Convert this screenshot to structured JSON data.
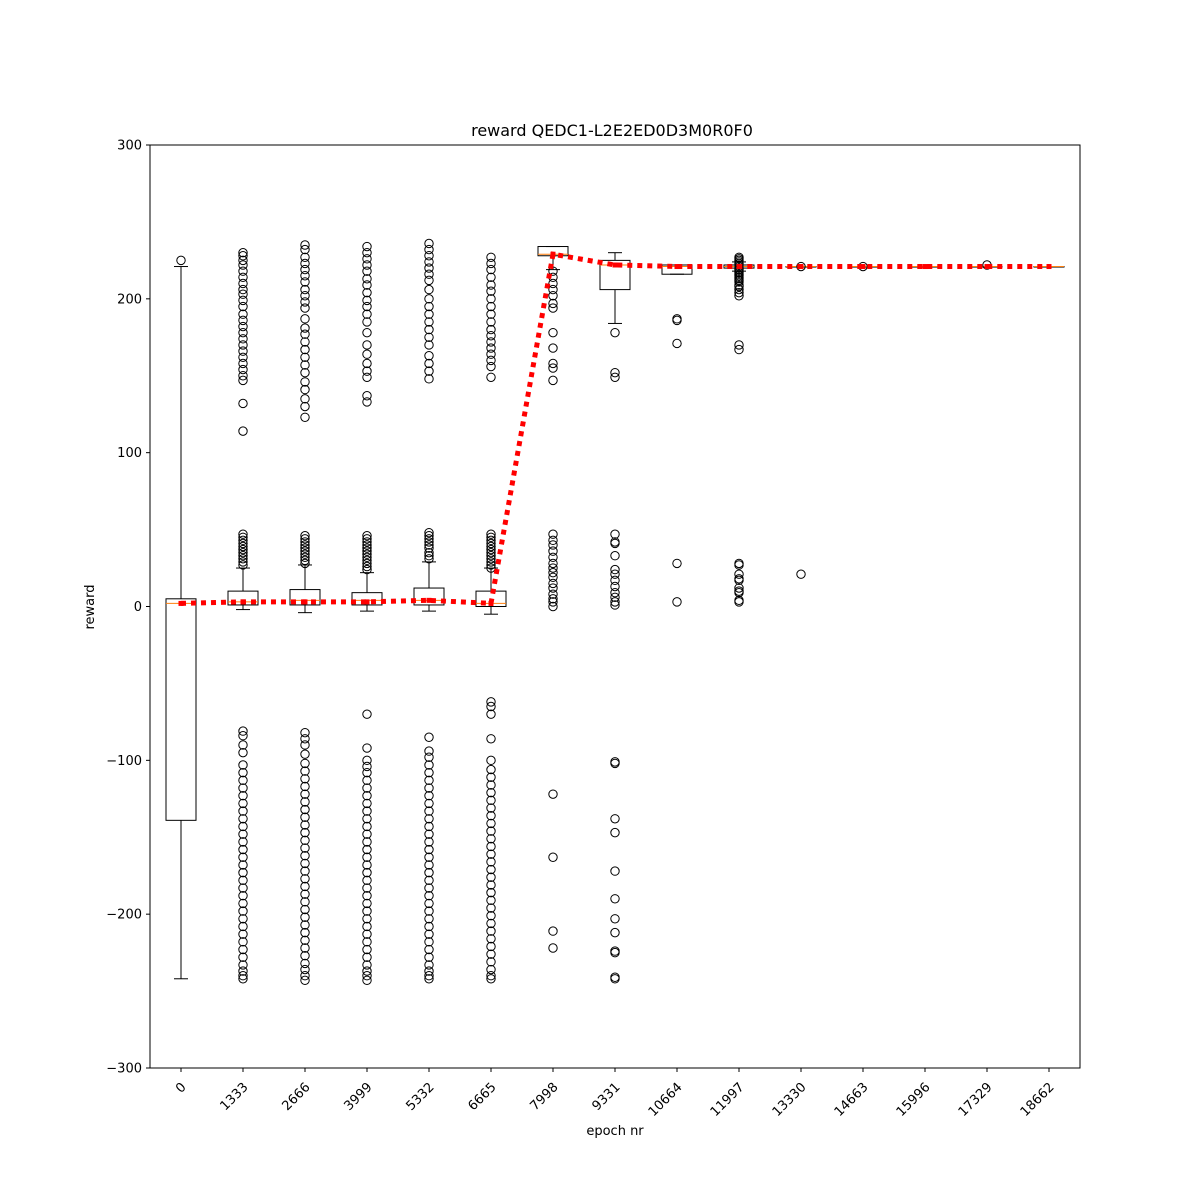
{
  "chart_data": {
    "type": "box",
    "title": "reward QEDC1-L2E2ED0D3M0R0F0",
    "xlabel": "epoch nr",
    "ylabel": "reward",
    "ylim": [
      -300,
      300
    ],
    "yticks": [
      -300,
      -200,
      -100,
      0,
      100,
      200,
      300
    ],
    "ytick_labels": [
      "−300",
      "−200",
      "−100",
      "0",
      "100",
      "200",
      "300"
    ],
    "categories": [
      "0",
      "1333",
      "2666",
      "3999",
      "5332",
      "6665",
      "7998",
      "9331",
      "10664",
      "11997",
      "13330",
      "14663",
      "15996",
      "17329",
      "18662"
    ],
    "grid": false,
    "colors": {
      "box": "#000000",
      "median": "#ff7f0e",
      "mean_line": "#ff0000"
    },
    "boxes": [
      {
        "q1": -139,
        "median": 2,
        "q3": 5,
        "whisker_low": -242,
        "whisker_high": 221,
        "outliers": [
          225
        ]
      },
      {
        "q1": 1,
        "median": 3,
        "q3": 10,
        "whisker_low": -2,
        "whisker_high": 25,
        "outliers": [
          230,
          228,
          225,
          222,
          218,
          214,
          210,
          206,
          203,
          199,
          195,
          190,
          186,
          182,
          178,
          174,
          170,
          166,
          162,
          158,
          154,
          150,
          147,
          132,
          114,
          47,
          45,
          43,
          41,
          39,
          37,
          35,
          33,
          31,
          29,
          27,
          -81,
          -84,
          -90,
          -95,
          -103,
          -108,
          -113,
          -118,
          -123,
          -128,
          -133,
          -138,
          -143,
          -148,
          -153,
          -158,
          -163,
          -168,
          -173,
          -178,
          -183,
          -188,
          -193,
          -198,
          -203,
          -208,
          -213,
          -218,
          -223,
          -228,
          -233,
          -237,
          -240,
          -242
        ]
      },
      {
        "q1": 1,
        "median": 4,
        "q3": 11,
        "whisker_low": -4,
        "whisker_high": 27,
        "outliers": [
          235,
          232,
          227,
          223,
          219,
          215,
          211,
          206,
          202,
          198,
          194,
          187,
          181,
          177,
          172,
          167,
          162,
          157,
          152,
          146,
          141,
          135,
          130,
          123,
          46,
          44,
          42,
          40,
          38,
          36,
          34,
          32,
          30,
          28,
          -82,
          -86,
          -90,
          -96,
          -102,
          -107,
          -112,
          -117,
          -122,
          -127,
          -132,
          -137,
          -142,
          -147,
          -152,
          -157,
          -162,
          -167,
          -172,
          -177,
          -182,
          -187,
          -192,
          -197,
          -202,
          -207,
          -212,
          -217,
          -222,
          -227,
          -232,
          -236,
          -240,
          -243
        ]
      },
      {
        "q1": 1,
        "median": 4,
        "q3": 9,
        "whisker_low": -3,
        "whisker_high": 22,
        "outliers": [
          234,
          230,
          226,
          222,
          218,
          213,
          209,
          204,
          199,
          195,
          190,
          185,
          178,
          170,
          164,
          158,
          153,
          149,
          137,
          133,
          46,
          44,
          42,
          40,
          38,
          36,
          34,
          32,
          30,
          28,
          26,
          24,
          -70,
          -92,
          -100,
          -104,
          -108,
          -113,
          -118,
          -123,
          -128,
          -133,
          -138,
          -143,
          -148,
          -153,
          -158,
          -163,
          -168,
          -173,
          -178,
          -183,
          -188,
          -193,
          -198,
          -203,
          -208,
          -213,
          -218,
          -223,
          -228,
          -233,
          -237,
          -240,
          -243
        ]
      },
      {
        "q1": 1,
        "median": 4,
        "q3": 12,
        "whisker_low": -3,
        "whisker_high": 29,
        "outliers": [
          236,
          232,
          228,
          224,
          220,
          216,
          212,
          206,
          200,
          195,
          190,
          185,
          180,
          175,
          170,
          163,
          158,
          153,
          148,
          48,
          46,
          44,
          42,
          40,
          38,
          35,
          33,
          31,
          -85,
          -94,
          -98,
          -103,
          -108,
          -113,
          -118,
          -123,
          -128,
          -133,
          -138,
          -143,
          -148,
          -153,
          -158,
          -163,
          -168,
          -173,
          -178,
          -183,
          -188,
          -193,
          -198,
          -203,
          -208,
          -213,
          -218,
          -223,
          -228,
          -233,
          -237,
          -240,
          -242
        ]
      },
      {
        "q1": 0,
        "median": 2,
        "q3": 10,
        "whisker_low": -5,
        "whisker_high": 25,
        "outliers": [
          227,
          223,
          219,
          214,
          209,
          205,
          200,
          195,
          190,
          185,
          180,
          176,
          172,
          168,
          164,
          160,
          156,
          149,
          47,
          45,
          43,
          41,
          39,
          37,
          35,
          33,
          31,
          29,
          27,
          25,
          -62,
          -65,
          -70,
          -86,
          -100,
          -106,
          -111,
          -116,
          -121,
          -126,
          -131,
          -136,
          -141,
          -146,
          -151,
          -156,
          -161,
          -166,
          -171,
          -176,
          -181,
          -186,
          -191,
          -196,
          -201,
          -206,
          -211,
          -216,
          -221,
          -226,
          -231,
          -236,
          -240,
          -242
        ]
      },
      {
        "q1": 228,
        "median": 229,
        "q3": 234,
        "whisker_low": 219,
        "whisker_high": 234,
        "outliers": [
          218,
          214,
          210,
          206,
          202,
          197,
          194,
          178,
          168,
          158,
          155,
          147,
          47,
          43,
          40,
          36,
          32,
          28,
          25,
          22,
          19,
          15,
          12,
          8,
          5,
          3,
          0,
          -122,
          -163,
          -211,
          -222
        ]
      },
      {
        "q1": 206,
        "median": 222,
        "q3": 225,
        "whisker_low": 184,
        "whisker_high": 230,
        "outliers": [
          178,
          152,
          149,
          47,
          42,
          41,
          33,
          24,
          21,
          17,
          13,
          9,
          6,
          3,
          1,
          -101,
          -102,
          -138,
          -147,
          -172,
          -190,
          -203,
          -212,
          -224,
          -225,
          -241,
          -242
        ]
      },
      {
        "q1": 216,
        "median": 221,
        "q3": 222,
        "whisker_low": 216,
        "whisker_high": 222,
        "outliers": [
          187,
          186,
          171,
          28,
          3
        ]
      },
      {
        "q1": 220,
        "median": 221,
        "q3": 222,
        "whisker_low": 218,
        "whisker_high": 224,
        "outliers": [
          227,
          226,
          225,
          224,
          223,
          222,
          220,
          219,
          218,
          217,
          216,
          215,
          214,
          213,
          212,
          211,
          209,
          208,
          206,
          204,
          202,
          170,
          167,
          28,
          27,
          21,
          18,
          17,
          12,
          10,
          9,
          4,
          3
        ]
      },
      {
        "q1": 221,
        "median": 221,
        "q3": 221,
        "whisker_low": 221,
        "whisker_high": 221,
        "outliers": [
          221,
          21
        ]
      },
      {
        "q1": 221,
        "median": 221,
        "q3": 221,
        "whisker_low": 221,
        "whisker_high": 221,
        "outliers": [
          221
        ]
      },
      {
        "q1": 221,
        "median": 221,
        "q3": 221,
        "whisker_low": 221,
        "whisker_high": 221,
        "outliers": []
      },
      {
        "q1": 221,
        "median": 221,
        "q3": 221,
        "whisker_low": 221,
        "whisker_high": 221,
        "outliers": [
          222
        ]
      },
      {
        "q1": 221,
        "median": 221,
        "q3": 221,
        "whisker_low": 221,
        "whisker_high": 221,
        "outliers": []
      }
    ],
    "mean_line": {
      "style": "dotted",
      "values": [
        2,
        3,
        3,
        3,
        4,
        2,
        229,
        222,
        221,
        221,
        221,
        221,
        221,
        221,
        221
      ]
    }
  }
}
